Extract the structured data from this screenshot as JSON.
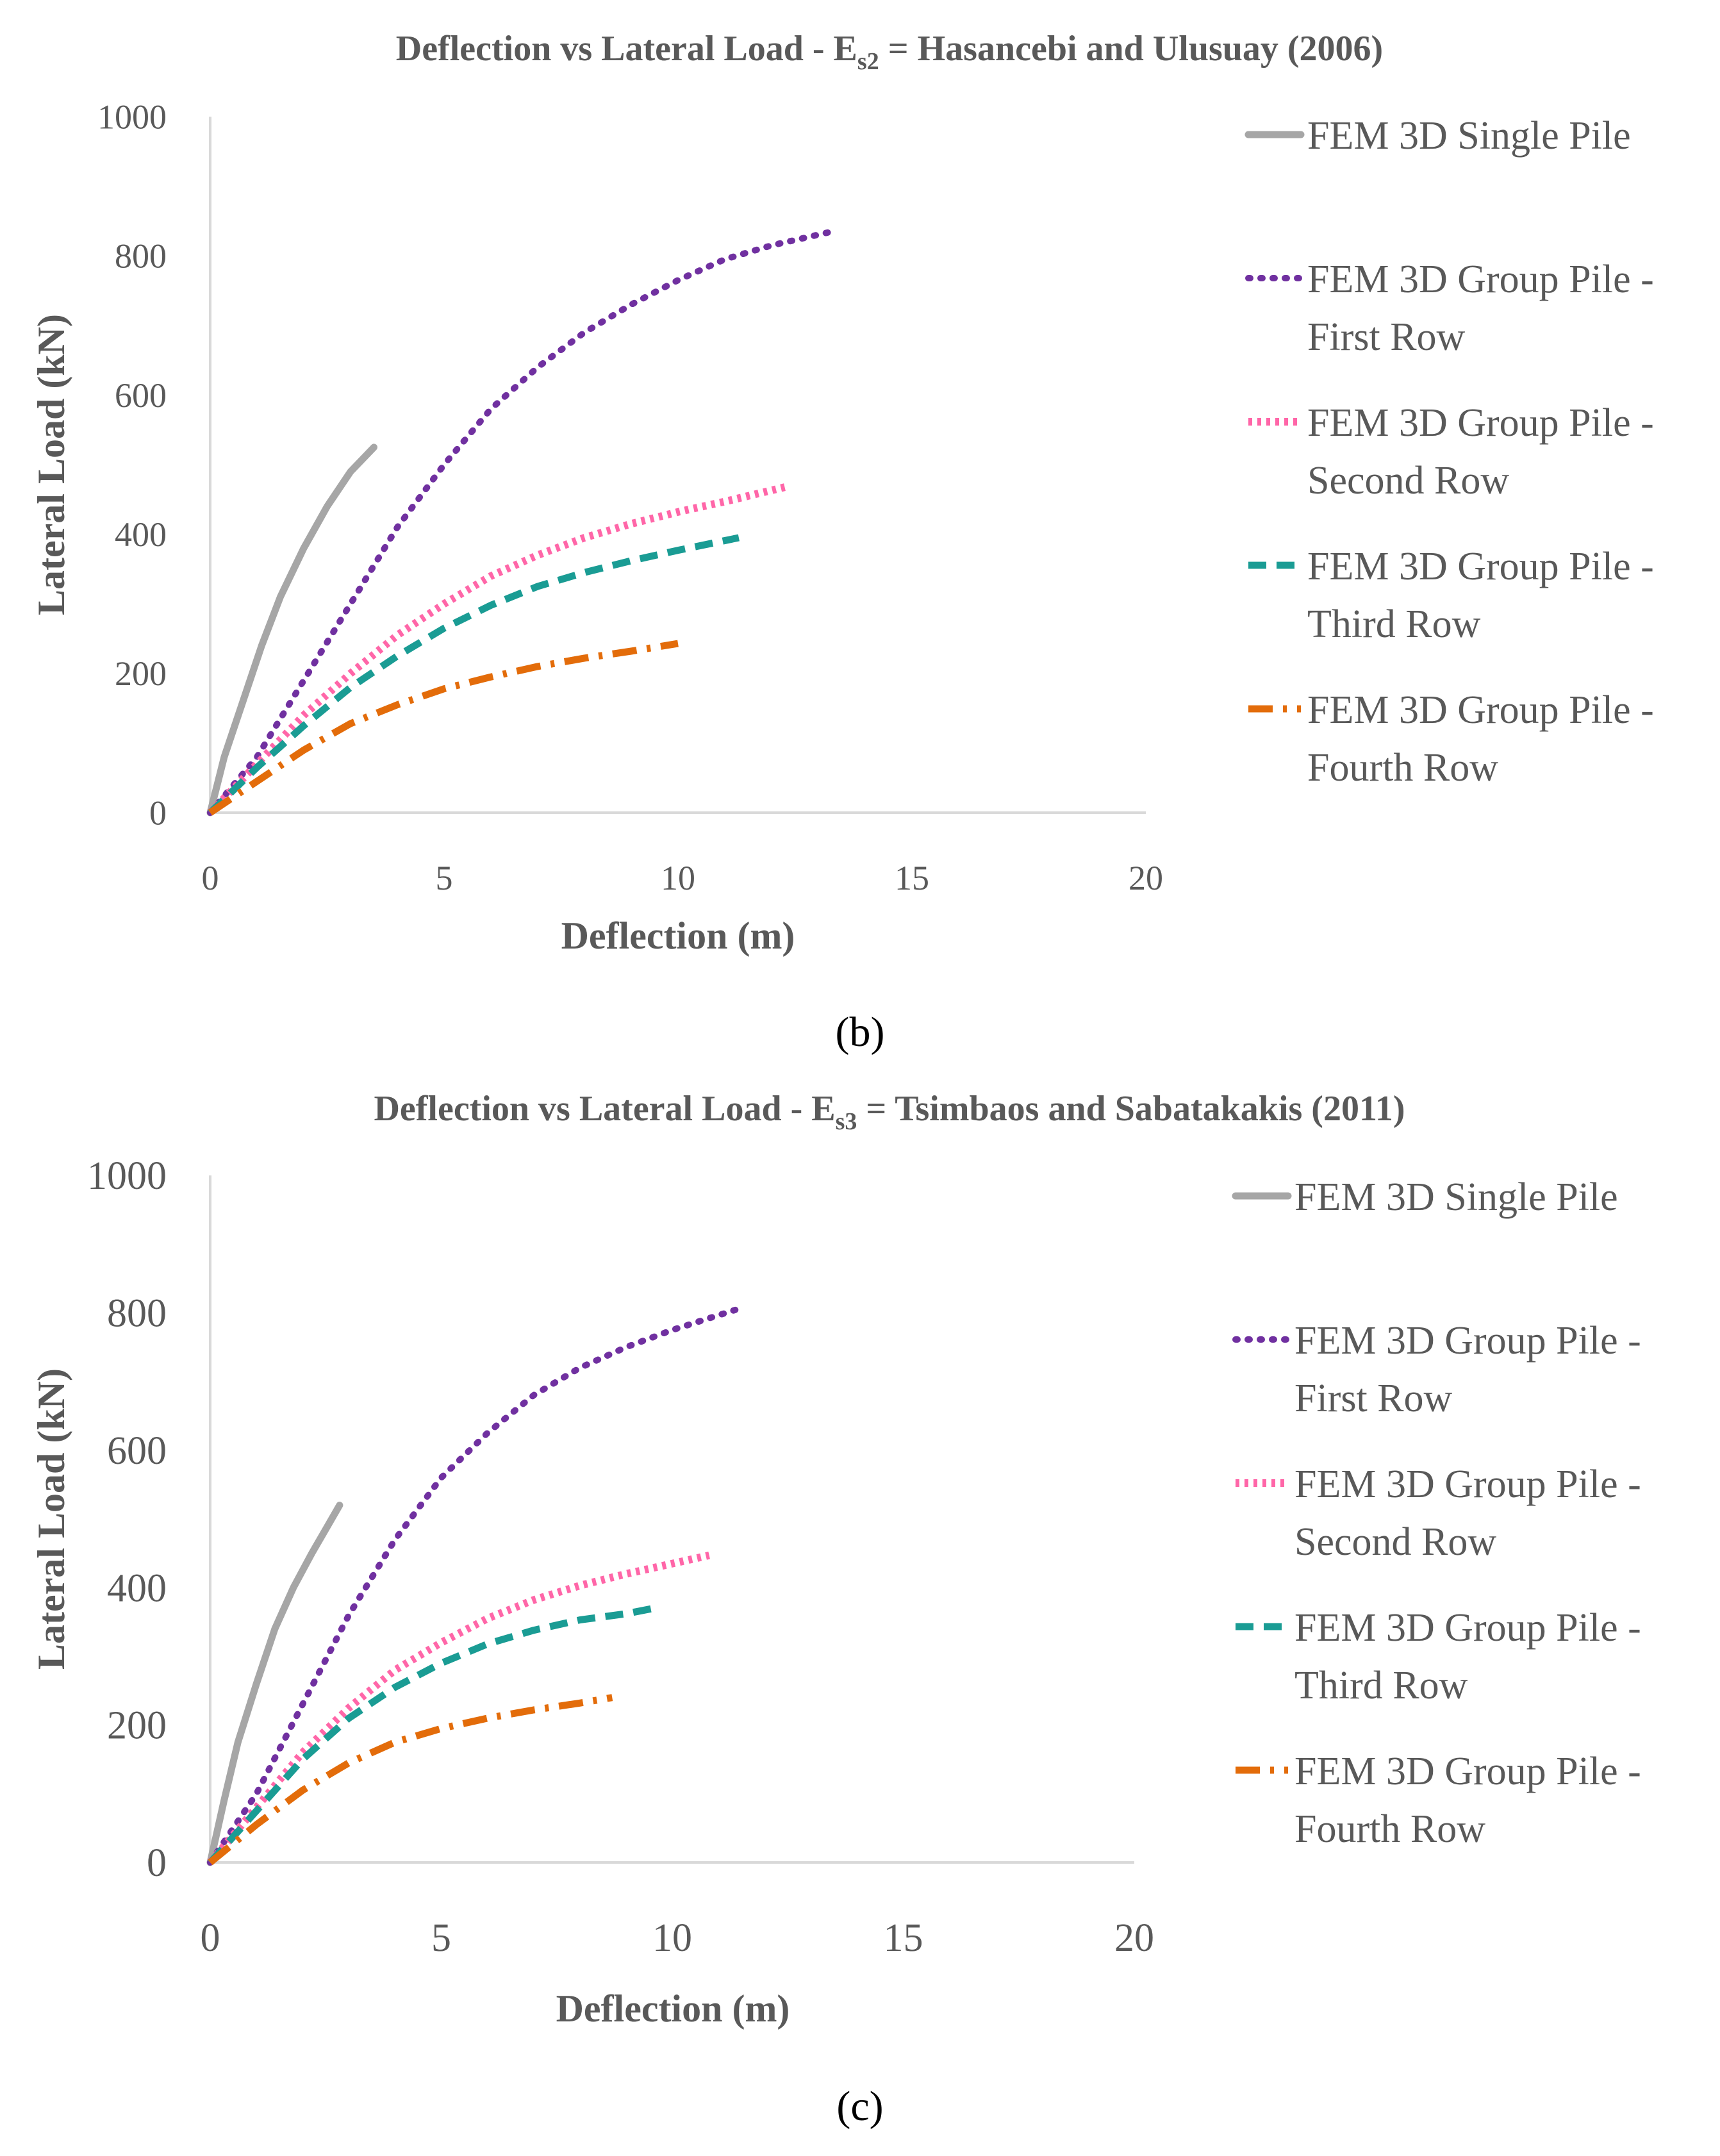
{
  "chart_data": [
    {
      "type": "line",
      "panel": "b",
      "title_main": "Deflection vs Lateral Load - E",
      "title_sub": "s2",
      "title_rest": " = Hasancebi and Ulusuay (2006)",
      "xlabel": "Deflection (m)",
      "ylabel": "Lateral Load (kN)",
      "xlim": [
        0,
        20
      ],
      "ylim": [
        0,
        1000
      ],
      "xticks": [
        "0",
        "5",
        "10",
        "15",
        "20"
      ],
      "yticks": [
        "0",
        "200",
        "400",
        "600",
        "800",
        "1000"
      ],
      "grid": false,
      "legend_position": "right",
      "series": [
        {
          "name": "FEM 3D Single Pile",
          "legend": [
            "FEM 3D Single Pile"
          ],
          "color": "#a6a6a6",
          "style": "solid",
          "points": [
            [
              0,
              0
            ],
            [
              0.3,
              80
            ],
            [
              0.7,
              160
            ],
            [
              1.1,
              240
            ],
            [
              1.5,
              310
            ],
            [
              2.0,
              380
            ],
            [
              2.5,
              440
            ],
            [
              3.0,
              490
            ],
            [
              3.5,
              525
            ]
          ]
        },
        {
          "name": "FEM 3D Group Pile - First Row",
          "legend": [
            "FEM 3D Group Pile -",
            "First Row"
          ],
          "color": "#7030a0",
          "style": "dotted",
          "points": [
            [
              0,
              0
            ],
            [
              1,
              80
            ],
            [
              2,
              190
            ],
            [
              3,
              300
            ],
            [
              4,
              410
            ],
            [
              5,
              500
            ],
            [
              6,
              580
            ],
            [
              7,
              640
            ],
            [
              8,
              690
            ],
            [
              9,
              730
            ],
            [
              10,
              765
            ],
            [
              11,
              795
            ],
            [
              12,
              815
            ],
            [
              13.3,
              835
            ]
          ]
        },
        {
          "name": "FEM 3D Group Pile - Second Row",
          "legend": [
            "FEM 3D Group Pile -",
            "Second Row"
          ],
          "color": "#ff66a8",
          "style": "dotted-thick",
          "points": [
            [
              0,
              0
            ],
            [
              1,
              70
            ],
            [
              2,
              140
            ],
            [
              3,
              200
            ],
            [
              4,
              255
            ],
            [
              5,
              300
            ],
            [
              6,
              340
            ],
            [
              7,
              370
            ],
            [
              8,
              395
            ],
            [
              9,
              415
            ],
            [
              10,
              432
            ],
            [
              11,
              447
            ],
            [
              12.3,
              468
            ]
          ]
        },
        {
          "name": "FEM 3D Group Pile - Third Row",
          "legend": [
            "FEM 3D Group Pile -",
            "Third Row"
          ],
          "color": "#1a9c94",
          "style": "dashed",
          "points": [
            [
              0,
              0
            ],
            [
              1,
              65
            ],
            [
              2,
              125
            ],
            [
              3,
              180
            ],
            [
              4,
              225
            ],
            [
              5,
              265
            ],
            [
              6,
              298
            ],
            [
              7,
              325
            ],
            [
              8,
              345
            ],
            [
              9,
              362
            ],
            [
              10,
              377
            ],
            [
              11.3,
              395
            ]
          ]
        },
        {
          "name": "FEM 3D Group Pile - Fourth Row",
          "legend": [
            "FEM 3D Group Pile -",
            "Fourth Row"
          ],
          "color": "#e36c0a",
          "style": "dashdot",
          "points": [
            [
              0,
              0
            ],
            [
              1,
              45
            ],
            [
              2,
              90
            ],
            [
              3,
              128
            ],
            [
              4,
              155
            ],
            [
              5,
              178
            ],
            [
              6,
              195
            ],
            [
              7,
              210
            ],
            [
              8,
              222
            ],
            [
              9,
              232
            ],
            [
              10,
              243
            ]
          ]
        }
      ]
    },
    {
      "type": "line",
      "panel": "c",
      "title_main": "Deflection vs Lateral Load - E",
      "title_sub": "s3",
      "title_rest": " = Tsimbaos and Sabatakakis (2011)",
      "xlabel": "Deflection (m)",
      "ylabel": "Lateral Load (kN)",
      "xlim": [
        0,
        20
      ],
      "ylim": [
        0,
        1000
      ],
      "xticks": [
        "0",
        "5",
        "10",
        "15",
        "20"
      ],
      "yticks": [
        "0",
        "200",
        "400",
        "600",
        "800",
        "1000"
      ],
      "grid": false,
      "legend_position": "right",
      "series": [
        {
          "name": "FEM 3D Single Pile",
          "legend": [
            "FEM 3D Single Pile"
          ],
          "color": "#a6a6a6",
          "style": "solid",
          "points": [
            [
              0,
              0
            ],
            [
              0.3,
              90
            ],
            [
              0.6,
              175
            ],
            [
              1.0,
              260
            ],
            [
              1.4,
              340
            ],
            [
              1.8,
              400
            ],
            [
              2.2,
              450
            ],
            [
              2.5,
              485
            ],
            [
              2.8,
              520
            ]
          ]
        },
        {
          "name": "FEM 3D Group Pile - First Row",
          "legend": [
            "FEM 3D Group Pile -",
            "First Row"
          ],
          "color": "#7030a0",
          "style": "dotted",
          "points": [
            [
              0,
              0
            ],
            [
              1,
              100
            ],
            [
              2,
              230
            ],
            [
              3,
              360
            ],
            [
              4,
              470
            ],
            [
              5,
              560
            ],
            [
              6,
              625
            ],
            [
              7,
              680
            ],
            [
              8,
              720
            ],
            [
              9,
              750
            ],
            [
              10,
              775
            ],
            [
              11.4,
              805
            ]
          ]
        },
        {
          "name": "FEM 3D Group Pile - Second Row",
          "legend": [
            "FEM 3D Group Pile -",
            "Second Row"
          ],
          "color": "#ff66a8",
          "style": "dotted-thick",
          "points": [
            [
              0,
              0
            ],
            [
              1,
              80
            ],
            [
              2,
              160
            ],
            [
              3,
              225
            ],
            [
              4,
              280
            ],
            [
              5,
              320
            ],
            [
              6,
              355
            ],
            [
              7,
              382
            ],
            [
              8,
              403
            ],
            [
              9,
              420
            ],
            [
              10,
              435
            ],
            [
              10.8,
              447
            ]
          ]
        },
        {
          "name": "FEM 3D Group Pile - Third Row",
          "legend": [
            "FEM 3D Group Pile -",
            "Third Row"
          ],
          "color": "#1a9c94",
          "style": "dashed",
          "points": [
            [
              0,
              0
            ],
            [
              1,
              75
            ],
            [
              2,
              150
            ],
            [
              3,
              210
            ],
            [
              4,
              255
            ],
            [
              5,
              290
            ],
            [
              6,
              318
            ],
            [
              7,
              338
            ],
            [
              8,
              353
            ],
            [
              9,
              362
            ],
            [
              9.6,
              370
            ]
          ]
        },
        {
          "name": "FEM 3D Group Pile - Fourth Row",
          "legend": [
            "FEM 3D Group Pile -",
            "Fourth Row"
          ],
          "color": "#e36c0a",
          "style": "dashdot",
          "points": [
            [
              0,
              0
            ],
            [
              1,
              55
            ],
            [
              2,
              105
            ],
            [
              3,
              145
            ],
            [
              4,
              175
            ],
            [
              5,
              195
            ],
            [
              6,
              210
            ],
            [
              7,
              222
            ],
            [
              8,
              232
            ],
            [
              8.7,
              240
            ]
          ]
        }
      ]
    }
  ],
  "panel_labels": [
    "(b)",
    "(c)"
  ]
}
